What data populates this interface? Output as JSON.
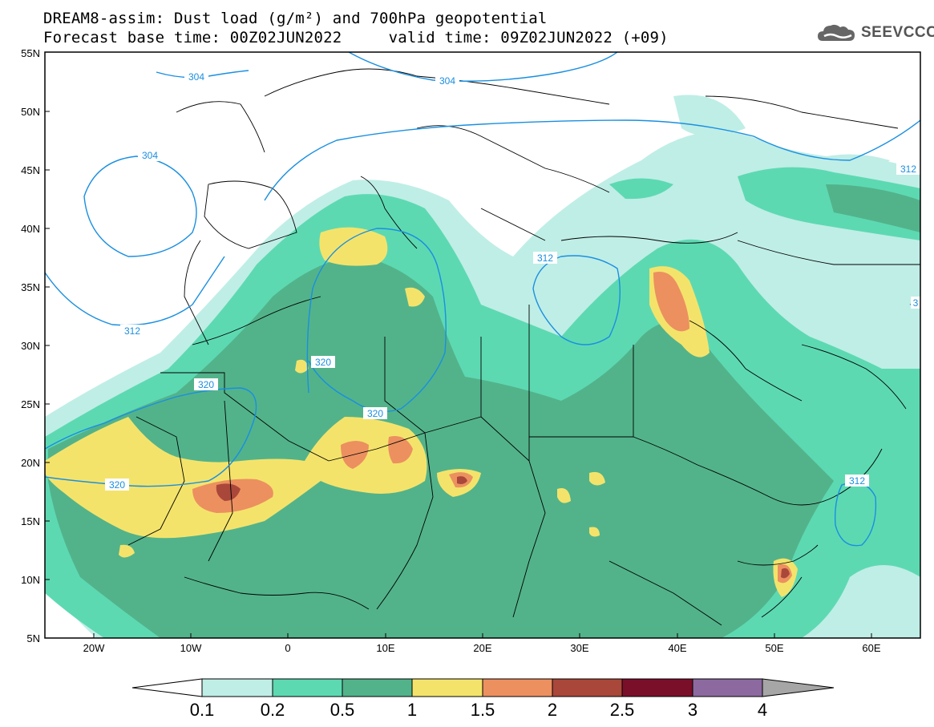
{
  "title": {
    "line1": "DREAM8-assim: Dust load (g/m²) and 700hPa geopotential",
    "line2": "Forecast base time: 00Z02JUN2022     valid time: 09Z02JUN2022 (+09)"
  },
  "logo": {
    "icon": "cloud-logo-icon",
    "text": "SEEVCCC"
  },
  "map": {
    "lon_range": [
      -25,
      65
    ],
    "lat_range": [
      5,
      55
    ],
    "lat_ticks": [
      "5N",
      "10N",
      "15N",
      "20N",
      "25N",
      "30N",
      "35N",
      "40N",
      "45N",
      "50N",
      "55N"
    ],
    "lon_ticks": [
      "20W",
      "10W",
      "0",
      "10E",
      "20E",
      "30E",
      "40E",
      "50E",
      "60E"
    ],
    "contour_labels": [
      "304",
      "304",
      "304",
      "312",
      "312",
      "312",
      "312",
      "320",
      "320",
      "320",
      "320",
      "3"
    ]
  },
  "colorbar": {
    "levels": [
      "0.1",
      "0.2",
      "0.5",
      "1",
      "1.5",
      "2",
      "2.5",
      "3",
      "4"
    ],
    "colors": [
      "#bfeee6",
      "#5dd9b2",
      "#52b38a",
      "#f4e36b",
      "#ec9060",
      "#a9473a",
      "#7a0f2a",
      "#8c6aa0",
      "#a6a6a6"
    ]
  },
  "colors": {
    "contour": "#1a8fe0",
    "border": "#000000"
  }
}
